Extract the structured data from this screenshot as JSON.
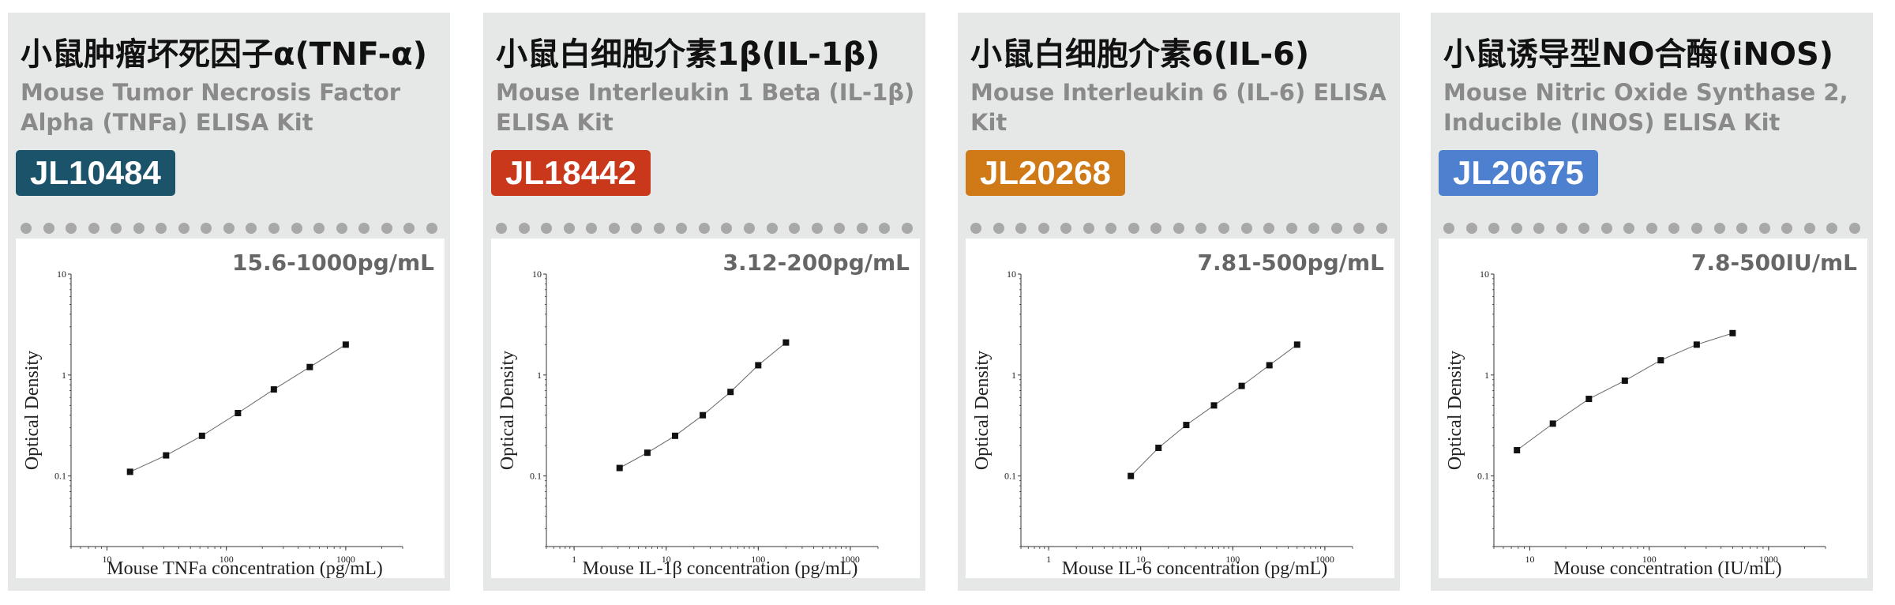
{
  "colors": {
    "panel_bg": "#e6e8e8",
    "dot": "#a8a8a8"
  },
  "panels": [
    {
      "title_cn": "小鼠肿瘤坏死因子α(TNF-α)",
      "title_en": "Mouse Tumor Necrosis Factor Alpha (TNFa) ELISA Kit",
      "catalog": "JL10484",
      "badge_color": "#1b536b"
    },
    {
      "title_cn": "小鼠白细胞介素1β(IL-1β)",
      "title_en": "Mouse Interleukin 1 Beta (IL-1β) ELISA Kit",
      "catalog": "JL18442",
      "badge_color": "#c9381a"
    },
    {
      "title_cn": "小鼠白细胞介素6(IL-6)",
      "title_en": "Mouse Interleukin 6 (IL-6) ELISA Kit",
      "catalog": "JL20268",
      "badge_color": "#cf7a16"
    },
    {
      "title_cn": "小鼠诱导型NO合酶(iNOS)",
      "title_en": "Mouse Nitric Oxide Synthase 2, Inducible (INOS) ELISA Kit",
      "catalog": "JL20675",
      "badge_color": "#4d80cf"
    }
  ],
  "chart_data": [
    {
      "type": "line",
      "range_label": "15.6-1000pg/mL",
      "xlabel": "Mouse TNFa concentration (pg/mL)",
      "ylabel": "Optical Density",
      "xscale": "log",
      "yscale": "log",
      "xlim": [
        5,
        3000
      ],
      "ylim": [
        0.02,
        10
      ],
      "xticks": [
        "10",
        "100",
        "1000"
      ],
      "yticks": [
        "0.1",
        "1",
        "10"
      ],
      "x": [
        15.6,
        31.25,
        62.5,
        125,
        250,
        500,
        1000
      ],
      "y": [
        0.11,
        0.16,
        0.25,
        0.42,
        0.72,
        1.2,
        2.0
      ]
    },
    {
      "type": "line",
      "range_label": "3.12-200pg/mL",
      "xlabel": "Mouse IL-1β concentration (pg/mL)",
      "ylabel": "Optical Density",
      "xscale": "log",
      "yscale": "log",
      "xlim": [
        0.5,
        2000
      ],
      "ylim": [
        0.02,
        10
      ],
      "xticks": [
        "1",
        "10",
        "100",
        "1000"
      ],
      "yticks": [
        "0.1",
        "1",
        "10"
      ],
      "x": [
        3.12,
        6.25,
        12.5,
        25,
        50,
        100,
        200
      ],
      "y": [
        0.12,
        0.17,
        0.25,
        0.4,
        0.68,
        1.25,
        2.1
      ]
    },
    {
      "type": "line",
      "range_label": "7.81-500pg/mL",
      "xlabel": "Mouse IL-6 concentration (pg/mL)",
      "ylabel": "Optical Density",
      "xscale": "log",
      "yscale": "log",
      "xlim": [
        0.5,
        2000
      ],
      "ylim": [
        0.02,
        10
      ],
      "xticks": [
        "1",
        "10",
        "100",
        "1000"
      ],
      "yticks": [
        "0.1",
        "1",
        "10"
      ],
      "x": [
        7.81,
        15.6,
        31.25,
        62.5,
        125,
        250,
        500
      ],
      "y": [
        0.1,
        0.19,
        0.32,
        0.5,
        0.78,
        1.25,
        2.0
      ]
    },
    {
      "type": "line",
      "range_label": "7.8-500IU/mL",
      "xlabel": "Mouse concentration (IU/mL)",
      "ylabel": "Optical Density",
      "xscale": "log",
      "yscale": "log",
      "xlim": [
        5,
        3000
      ],
      "ylim": [
        0.02,
        10
      ],
      "xticks": [
        "10",
        "100",
        "1000"
      ],
      "yticks": [
        "0.1",
        "1",
        "10"
      ],
      "x": [
        7.8,
        15.6,
        31.25,
        62.5,
        125,
        250,
        500
      ],
      "y": [
        0.18,
        0.33,
        0.58,
        0.88,
        1.4,
        2.0,
        2.6
      ]
    }
  ]
}
